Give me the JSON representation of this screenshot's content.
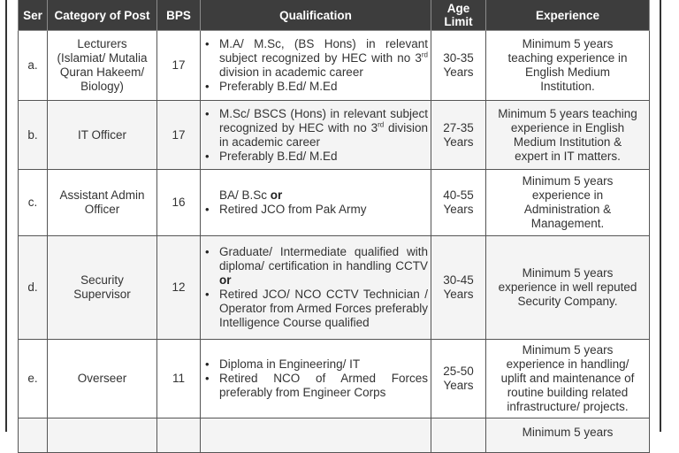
{
  "table": {
    "headers": {
      "ser": "Ser",
      "category": "Category of Post",
      "bps": "BPS",
      "qualification": "Qualification",
      "age_line1": "Age",
      "age_line2": "Limit",
      "experience": "Experience"
    },
    "rows": [
      {
        "ser": "a.",
        "category_lines": [
          "Lecturers",
          "(Islamiat/ Mutalia",
          "Quran Hakeem/",
          "Biology)"
        ],
        "bps": "17",
        "qualification": [
          {
            "bullet": true,
            "pre": "M.A/ M.Sc, (BS Hons) in relevant subject recognized by HEC with no ",
            "num": "3",
            "sup": "rd",
            "post": " division in academic career",
            "bold_suffix": ""
          },
          {
            "bullet": true,
            "pre": "Preferably B.Ed/ M.Ed",
            "num": "",
            "sup": "",
            "post": "",
            "bold_suffix": ""
          }
        ],
        "age_line1": "30-35",
        "age_line2": "Years",
        "experience_lines": [
          "Minimum 5 years",
          "teaching experience in",
          "English Medium",
          "Institution."
        ]
      },
      {
        "ser": "b.",
        "category_lines": [
          "IT Officer"
        ],
        "bps": "17",
        "qualification": [
          {
            "bullet": true,
            "pre": "M.Sc/ BSCS (Hons) in relevant subject recognized by HEC with no ",
            "num": "3",
            "sup": "rd",
            "post": " division in academic career",
            "bold_suffix": ""
          },
          {
            "bullet": true,
            "pre": "Preferably B.Ed/ M.Ed",
            "num": "",
            "sup": "",
            "post": "",
            "bold_suffix": ""
          }
        ],
        "age_line1": "27-35",
        "age_line2": "Years",
        "experience_lines": [
          "Minimum 5 years teaching",
          "experience in English",
          "Medium Institution &",
          "expert in IT matters."
        ]
      },
      {
        "ser": "c.",
        "category_lines": [
          "Assistant Admin",
          "Officer"
        ],
        "bps": "16",
        "qualification": [
          {
            "bullet": false,
            "pre": "BA/ B.Sc ",
            "num": "",
            "sup": "",
            "post": "",
            "bold_suffix": "or"
          },
          {
            "bullet": true,
            "pre": "Retired JCO from Pak Army",
            "num": "",
            "sup": "",
            "post": "",
            "bold_suffix": ""
          }
        ],
        "age_line1": "40-55",
        "age_line2": "Years",
        "experience_lines": [
          "Minimum 5 years",
          "experience in",
          "Administration &",
          "Management."
        ]
      },
      {
        "ser": "d.",
        "category_lines": [
          "Security",
          "Supervisor"
        ],
        "bps": "12",
        "qualification": [
          {
            "bullet": true,
            "pre": "Graduate/ Intermediate qualified with diploma/ certification in handling CCTV ",
            "num": "",
            "sup": "",
            "post": "",
            "bold_suffix": "or"
          },
          {
            "bullet": true,
            "pre": "Retired JCO/ NCO CCTV Technician / Operator from Armed Forces preferably Intelligence Course qualified",
            "num": "",
            "sup": "",
            "post": "",
            "bold_suffix": ""
          }
        ],
        "age_line1": "30-45",
        "age_line2": "Years",
        "experience_lines": [
          "Minimum 5 years",
          "experience in  well reputed",
          "Security Company."
        ]
      },
      {
        "ser": "e.",
        "category_lines": [
          "Overseer"
        ],
        "bps": "11",
        "qualification": [
          {
            "bullet": true,
            "pre": "Diploma in Engineering/ IT",
            "num": "",
            "sup": "",
            "post": "",
            "bold_suffix": ""
          },
          {
            "bullet": true,
            "pre": "Retired NCO of Armed Forces preferably from Engineer Corps",
            "num": "",
            "sup": "",
            "post": "",
            "bold_suffix": ""
          }
        ],
        "age_line1": "25-50",
        "age_line2": "Years",
        "experience_lines": [
          "Minimum 5 years",
          "experience in  handling/",
          "uplift and maintenance of",
          "routine building related",
          "infrastructure/ projects."
        ]
      },
      {
        "ser": "",
        "category_lines": [],
        "bps": "",
        "qualification": [],
        "age_line1": "",
        "age_line2": "",
        "experience_lines": [
          "Minimum 5 years"
        ]
      }
    ]
  }
}
